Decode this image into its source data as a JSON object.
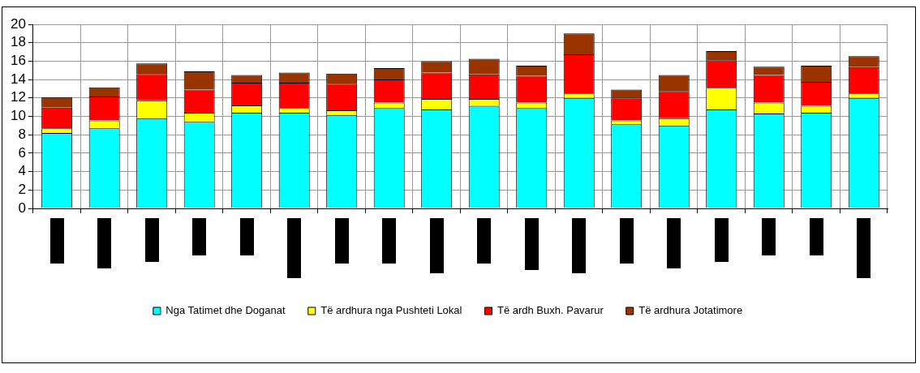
{
  "chart_data": {
    "type": "bar",
    "stacked": true,
    "categories": [
      null,
      null,
      null,
      null,
      null,
      null,
      null,
      null,
      null,
      null,
      null,
      null,
      null,
      null,
      null,
      null,
      null,
      null
    ],
    "series": [
      {
        "name": "Nga Tatimet dhe Doganat",
        "color": "#00ffff",
        "values": [
          8.2,
          8.7,
          9.8,
          9.4,
          10.4,
          10.4,
          10.15,
          10.9,
          10.75,
          11.15,
          10.9,
          12.0,
          9.15,
          9.0,
          10.75,
          10.3,
          10.4,
          12.0
        ]
      },
      {
        "name": "Të ardhura nga Pushteti Lokal",
        "color": "#ffff00",
        "values": [
          0.5,
          0.85,
          1.95,
          1.0,
          0.8,
          0.5,
          0.5,
          0.6,
          1.15,
          0.75,
          0.6,
          0.5,
          0.4,
          0.8,
          2.35,
          1.2,
          0.75,
          0.5
        ]
      },
      {
        "name": "Të ardh Buxh. Pavarur",
        "color": "#ff0000",
        "values": [
          2.25,
          2.6,
          2.85,
          2.5,
          2.45,
          2.75,
          2.9,
          2.5,
          2.85,
          2.65,
          2.9,
          4.25,
          2.5,
          2.95,
          3.0,
          3.0,
          2.6,
          2.85
        ]
      },
      {
        "name": "Të ardhura Jotatimore",
        "color": "#993300",
        "values": [
          1.15,
          1.0,
          1.15,
          2.0,
          0.85,
          1.1,
          1.1,
          1.25,
          1.25,
          1.7,
          1.1,
          2.25,
          0.85,
          1.75,
          1.0,
          0.9,
          1.75,
          1.2
        ]
      }
    ],
    "ylim": [
      0,
      20
    ],
    "yticks": [
      0,
      2,
      4,
      6,
      8,
      10,
      12,
      14,
      16,
      18,
      20
    ],
    "grid": true,
    "legend": "bottom"
  }
}
